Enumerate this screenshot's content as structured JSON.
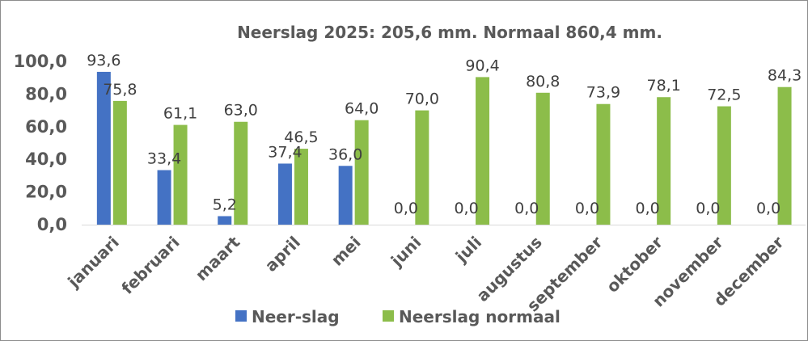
{
  "chart_data": {
    "type": "bar",
    "title": "Neerslag 2025: 205,6 mm. Normaal 860,4 mm.",
    "categories": [
      "januari",
      "februari",
      "maart",
      "april",
      "mei",
      "juni",
      "juli",
      "augustus",
      "september",
      "oktober",
      "november",
      "december"
    ],
    "series": [
      {
        "name": "Neer-slag",
        "color": "#4472c4",
        "values": [
          93.6,
          33.4,
          5.2,
          37.4,
          36.0,
          0.0,
          0.0,
          0.0,
          0.0,
          0.0,
          0.0,
          0.0
        ],
        "labels": [
          "93,6",
          "33,4",
          "5,2",
          "37,4",
          "36,0",
          "0,0",
          "0,0",
          "0,0",
          "0,0",
          "0,0",
          "0,0",
          "0,0"
        ]
      },
      {
        "name": "Neerslag normaal",
        "color": "#8cbd4a",
        "values": [
          75.8,
          61.1,
          63.0,
          46.5,
          64.0,
          70.0,
          90.4,
          80.8,
          73.9,
          78.1,
          72.5,
          84.3
        ],
        "labels": [
          "75,8",
          "61,1",
          "63,0",
          "46,5",
          "64,0",
          "70,0",
          "90,4",
          "80,8",
          "73,9",
          "78,1",
          "72,5",
          "84,3"
        ]
      }
    ],
    "ylim": [
      0,
      100
    ],
    "yticks": [
      0,
      20,
      40,
      60,
      80,
      100
    ],
    "ytick_labels": [
      "0,0",
      "20,0",
      "40,0",
      "60,0",
      "80,0",
      "100,0"
    ],
    "grid": false,
    "legend_position": "bottom"
  }
}
